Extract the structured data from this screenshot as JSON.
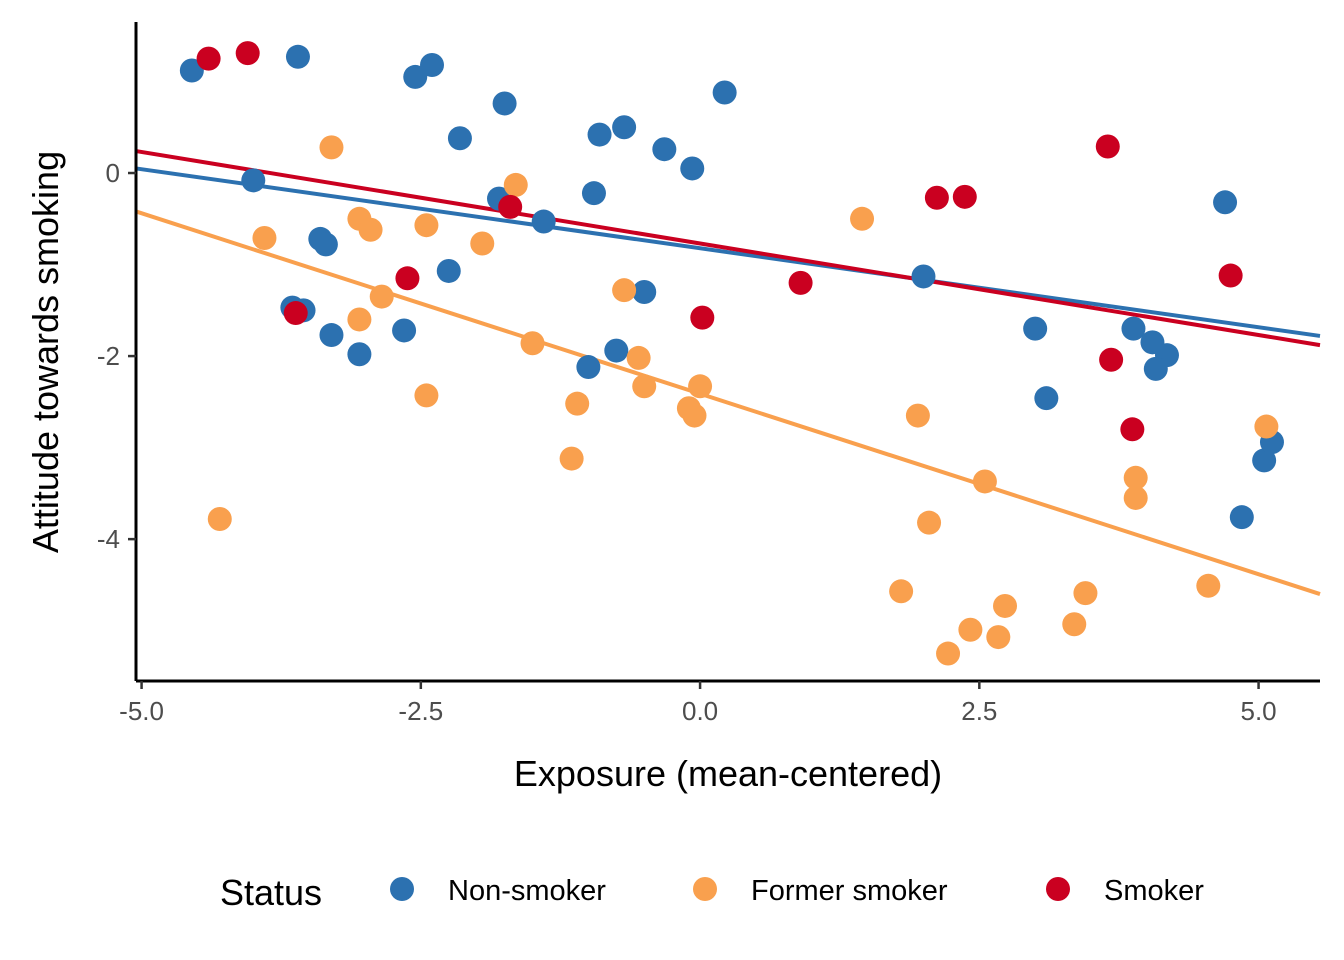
{
  "chart_data": {
    "type": "scatter",
    "xlabel": "Exposure (mean-centered)",
    "ylabel": "Attitude towards smoking",
    "xlim": [
      -5.05,
      5.55
    ],
    "ylim": [
      -5.55,
      1.65
    ],
    "x_ticks": [
      -5.0,
      -2.5,
      0.0,
      2.5,
      5.0
    ],
    "x_tick_labels": [
      "-5.0",
      "-2.5",
      "0.0",
      "2.5",
      "5.0"
    ],
    "y_ticks": [
      0,
      -2,
      -4
    ],
    "y_tick_labels": [
      "0",
      "-2",
      "-4"
    ],
    "grid": false,
    "legend": {
      "title": "Status",
      "position": "bottom"
    },
    "series": [
      {
        "name": "Non-smoker",
        "color": "#2C71B0",
        "points": [
          [
            -4.55,
            1.12
          ],
          [
            -3.6,
            1.27
          ],
          [
            -2.55,
            1.05
          ],
          [
            -2.4,
            1.18
          ],
          [
            -1.75,
            0.76
          ],
          [
            -2.15,
            0.38
          ],
          [
            -0.9,
            0.42
          ],
          [
            -0.68,
            0.5
          ],
          [
            -0.32,
            0.26
          ],
          [
            -0.07,
            0.05
          ],
          [
            0.22,
            0.88
          ],
          [
            -4.0,
            -0.08
          ],
          [
            -1.8,
            -0.28
          ],
          [
            -1.4,
            -0.53
          ],
          [
            -0.95,
            -0.22
          ],
          [
            -3.4,
            -0.72
          ],
          [
            -3.35,
            -0.78
          ],
          [
            -2.25,
            -1.07
          ],
          [
            -0.5,
            -1.3
          ],
          [
            -3.65,
            -1.47
          ],
          [
            -3.55,
            -1.5
          ],
          [
            -3.3,
            -1.77
          ],
          [
            -2.65,
            -1.72
          ],
          [
            -3.05,
            -1.98
          ],
          [
            -0.75,
            -1.94
          ],
          [
            -1.0,
            -2.12
          ],
          [
            2.0,
            -1.13
          ],
          [
            3.0,
            -1.7
          ],
          [
            3.1,
            -2.46
          ],
          [
            3.88,
            -1.7
          ],
          [
            4.05,
            -1.85
          ],
          [
            4.18,
            -1.99
          ],
          [
            4.08,
            -2.14
          ],
          [
            4.7,
            -0.32
          ],
          [
            5.05,
            -3.14
          ],
          [
            5.12,
            -2.94
          ],
          [
            4.85,
            -3.76
          ]
        ]
      },
      {
        "name": "Former smoker",
        "color": "#F9A04E",
        "points": [
          [
            -3.3,
            0.28
          ],
          [
            -1.65,
            -0.13
          ],
          [
            -3.05,
            -0.5
          ],
          [
            -2.95,
            -0.62
          ],
          [
            -2.45,
            -0.57
          ],
          [
            -3.9,
            -0.71
          ],
          [
            -1.95,
            -0.77
          ],
          [
            -2.85,
            -1.35
          ],
          [
            -3.05,
            -1.6
          ],
          [
            -0.68,
            -1.28
          ],
          [
            1.45,
            -0.5
          ],
          [
            -1.5,
            -1.86
          ],
          [
            -0.55,
            -2.02
          ],
          [
            -0.5,
            -2.33
          ],
          [
            0.0,
            -2.33
          ],
          [
            -0.1,
            -2.57
          ],
          [
            -0.05,
            -2.65
          ],
          [
            -2.45,
            -2.43
          ],
          [
            -1.1,
            -2.52
          ],
          [
            -1.15,
            -3.12
          ],
          [
            -4.3,
            -3.78
          ],
          [
            1.95,
            -2.65
          ],
          [
            2.55,
            -3.37
          ],
          [
            2.05,
            -3.82
          ],
          [
            3.9,
            -3.33
          ],
          [
            3.9,
            -3.55
          ],
          [
            5.07,
            -2.77
          ],
          [
            1.8,
            -4.57
          ],
          [
            2.22,
            -5.25
          ],
          [
            2.42,
            -4.99
          ],
          [
            2.67,
            -5.07
          ],
          [
            2.73,
            -4.73
          ],
          [
            3.35,
            -4.93
          ],
          [
            3.45,
            -4.59
          ],
          [
            4.55,
            -4.51
          ]
        ]
      },
      {
        "name": "Smoker",
        "color": "#CA0020",
        "points": [
          [
            -4.4,
            1.25
          ],
          [
            -4.05,
            1.31
          ],
          [
            -1.7,
            -0.37
          ],
          [
            -2.62,
            -1.15
          ],
          [
            -3.62,
            -1.53
          ],
          [
            0.02,
            -1.58
          ],
          [
            0.9,
            -1.2
          ],
          [
            2.12,
            -0.27
          ],
          [
            2.37,
            -0.26
          ],
          [
            3.65,
            0.29
          ],
          [
            3.68,
            -2.04
          ],
          [
            3.87,
            -2.8
          ],
          [
            4.75,
            -1.12
          ]
        ]
      }
    ],
    "fit_lines": [
      {
        "series": "Non-smoker",
        "color": "#2C71B0",
        "x": [
          -5.05,
          5.55
        ],
        "y": [
          0.05,
          -1.78
        ]
      },
      {
        "series": "Smoker",
        "color": "#CA0020",
        "x": [
          -5.05,
          5.55
        ],
        "y": [
          0.24,
          -1.88
        ]
      },
      {
        "series": "Former smoker",
        "color": "#F9A04E",
        "x": [
          -5.05,
          5.55
        ],
        "y": [
          -0.42,
          -4.6
        ]
      }
    ]
  }
}
